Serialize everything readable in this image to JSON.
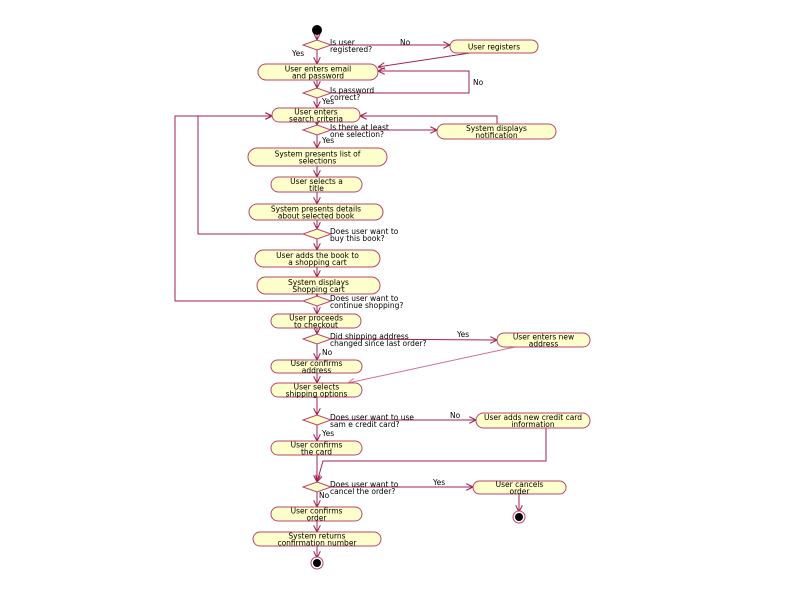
{
  "colors": {
    "activity_fill": "#ffffcc",
    "border": "#b8456e",
    "edge": "#a3224f",
    "node": "#000000"
  },
  "activities": [
    {
      "id": "register",
      "lines": [
        "User registers"
      ]
    },
    {
      "id": "login",
      "lines": [
        "User enters email",
        "and password"
      ]
    },
    {
      "id": "search",
      "lines": [
        "User enters",
        "search criteria"
      ]
    },
    {
      "id": "notify",
      "lines": [
        "System displays",
        "notification"
      ]
    },
    {
      "id": "list",
      "lines": [
        "System presents list of",
        "selections"
      ]
    },
    {
      "id": "select",
      "lines": [
        "User selects a",
        "title"
      ]
    },
    {
      "id": "details",
      "lines": [
        "System presents details",
        "about selected book"
      ]
    },
    {
      "id": "addcart",
      "lines": [
        "User adds the book to",
        "a shopping cart"
      ]
    },
    {
      "id": "showcart",
      "lines": [
        "System displays",
        "Shopping cart"
      ]
    },
    {
      "id": "checkout",
      "lines": [
        "User proceeds",
        "to checkout"
      ]
    },
    {
      "id": "newaddr",
      "lines": [
        "User enters new",
        "address"
      ]
    },
    {
      "id": "confaddr",
      "lines": [
        "User confirms",
        "address"
      ]
    },
    {
      "id": "shipping",
      "lines": [
        "User selects",
        "shipping options"
      ]
    },
    {
      "id": "newcard",
      "lines": [
        "User adds new credit card",
        "information"
      ]
    },
    {
      "id": "confcard",
      "lines": [
        "User confirms",
        "the card"
      ]
    },
    {
      "id": "cancel",
      "lines": [
        "User cancels",
        "order"
      ]
    },
    {
      "id": "confirmorder",
      "lines": [
        "User confirms",
        "order"
      ]
    },
    {
      "id": "confnum",
      "lines": [
        "System returns",
        "confirmation number"
      ]
    }
  ],
  "decisions": [
    {
      "id": "registered",
      "lines": [
        "Is user",
        "registered?"
      ]
    },
    {
      "id": "password",
      "lines": [
        "Is password",
        "correct?"
      ]
    },
    {
      "id": "selection",
      "lines": [
        "Is there at least",
        "one selection?"
      ]
    },
    {
      "id": "buy",
      "lines": [
        "Does user want to",
        "buy this book?"
      ]
    },
    {
      "id": "continue",
      "lines": [
        "Does user want to",
        "continue shopping?"
      ]
    },
    {
      "id": "address",
      "lines": [
        "Did shipping address",
        "changed since last order?"
      ]
    },
    {
      "id": "card",
      "lines": [
        "Does user want to use",
        "sam e credit card?"
      ]
    },
    {
      "id": "cancelq",
      "lines": [
        "Does user want to",
        "cancel the order?"
      ]
    }
  ],
  "guards": [
    {
      "id": "registered-no",
      "text": "No"
    },
    {
      "id": "registered-yes",
      "text": "Yes"
    },
    {
      "id": "password-no",
      "text": "No"
    },
    {
      "id": "password-yes",
      "text": "Yes"
    },
    {
      "id": "selection-yes",
      "text": "Yes"
    },
    {
      "id": "address-yes",
      "text": "Yes"
    },
    {
      "id": "address-no",
      "text": "No"
    },
    {
      "id": "card-no",
      "text": "No"
    },
    {
      "id": "card-yes",
      "text": "Yes"
    },
    {
      "id": "cancel-yes",
      "text": "Yes"
    },
    {
      "id": "cancel-no",
      "text": "No"
    }
  ]
}
